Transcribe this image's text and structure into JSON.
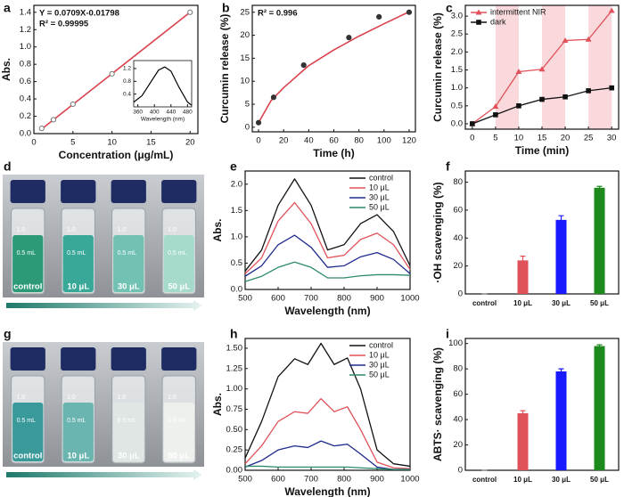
{
  "chart_data": [
    {
      "type": "scatter",
      "letter": "a",
      "x_label": "Concentration (μg/mL)",
      "y_label": "Abs.",
      "annotations": [
        "Y = 0.0709X-0.01798",
        "R² = 0.99995"
      ],
      "x": [
        1,
        2.5,
        5,
        10,
        20
      ],
      "values": [
        0.06,
        0.16,
        0.34,
        0.69,
        1.4
      ],
      "color": "#777777",
      "fit": {
        "x": [
          1,
          20
        ],
        "values": [
          0.053,
          1.4
        ],
        "color": "#d9434e"
      },
      "xlim": [
        0,
        21
      ],
      "ylim": [
        0,
        1.48
      ],
      "xticks": [
        0,
        5,
        10,
        15,
        20
      ],
      "yticks": [
        {
          "value": 0,
          "label": "0.0"
        },
        0.2,
        0.4,
        0.6,
        0.8,
        {
          "value": 1,
          "label": "1.0"
        },
        1.2,
        1.4
      ],
      "inset": {
        "x_label": "Wavelength (nm)",
        "x": [
          350,
          370,
          390,
          410,
          425,
          440,
          460,
          480,
          490
        ],
        "values": [
          0.15,
          0.35,
          0.75,
          1.15,
          1.25,
          1.12,
          0.6,
          0.15,
          0.05
        ],
        "color": "#000000",
        "xlim": [
          350,
          490
        ],
        "ylim": [
          0,
          1.45
        ],
        "xticks": [
          360,
          400,
          440,
          480
        ],
        "yticks": [
          0.4,
          0.8,
          1.2
        ]
      }
    },
    {
      "type": "scatter",
      "letter": "b",
      "x_label": "Time (h)",
      "y_label": "Curcumin release (%)",
      "annotations": [
        "R² = 0.996"
      ],
      "x": [
        0,
        12,
        36,
        72,
        96,
        120
      ],
      "values": [
        1,
        6.5,
        13.5,
        19.5,
        24,
        25
      ],
      "color": "#333333",
      "fit": {
        "x": [
          0,
          10,
          20,
          40,
          60,
          80,
          100,
          120
        ],
        "values": [
          1,
          5.8,
          8.6,
          13.4,
          16.8,
          19.8,
          22.5,
          25.1
        ],
        "color": "#d9434e"
      },
      "xlim": [
        -5,
        125
      ],
      "ylim": [
        -1,
        26.5
      ],
      "xticks": [
        0,
        20,
        40,
        60,
        80,
        100,
        120
      ],
      "yticks": [
        0,
        5,
        10,
        15,
        20,
        25
      ]
    },
    {
      "type": "line",
      "letter": "c",
      "x_label": "Time (min)",
      "y_label": "Curcumin release (%)",
      "legend": "upper left",
      "x": [
        0,
        5,
        10,
        15,
        20,
        25,
        30
      ],
      "shaded": [
        [
          5,
          10
        ],
        [
          15,
          20
        ],
        [
          25,
          30
        ]
      ],
      "shade_color": "#f9d9dc",
      "series": [
        {
          "name": "intermittent NIR",
          "color": "#e0525a",
          "marker": "triangle",
          "values": [
            0,
            0.48,
            1.45,
            1.52,
            2.32,
            2.35,
            3.15
          ]
        },
        {
          "name": "dark",
          "color": "#111111",
          "marker": "square",
          "values": [
            0,
            0.25,
            0.5,
            0.68,
            0.75,
            0.92,
            1.0
          ]
        }
      ],
      "xlim": [
        -1.5,
        31.5
      ],
      "ylim": [
        -0.15,
        3.3
      ],
      "xticks": [
        0,
        5,
        10,
        15,
        20,
        25,
        30
      ],
      "yticks": [
        {
          "value": 0,
          "label": "0.0"
        },
        0.5,
        {
          "value": 1,
          "label": "1.0"
        },
        1.5,
        {
          "value": 2,
          "label": "2.0"
        },
        2.5,
        {
          "value": 3,
          "label": "3.0"
        }
      ]
    },
    {
      "type": "photo",
      "letter": "d",
      "labels": [
        "control",
        "10 μL",
        "30 μL",
        "50 μL"
      ],
      "scale_labels": [
        "1.0",
        "0.5 mL"
      ],
      "liquid_colors": [
        "#2c9a78",
        "#3aa898",
        "#72c2b3",
        "#a6dacd"
      ]
    },
    {
      "type": "line",
      "letter": "e",
      "x_label": "Wavelength (nm)",
      "y_label": "Abs.",
      "legend": "upper right",
      "x": [
        500,
        550,
        600,
        650,
        700,
        750,
        800,
        850,
        900,
        950,
        1000
      ],
      "series": [
        {
          "name": "control",
          "color": "#111111",
          "values": [
            0.35,
            0.75,
            1.6,
            2.1,
            1.6,
            0.75,
            0.85,
            1.25,
            1.42,
            1.1,
            0.45
          ]
        },
        {
          "name": "10 μL",
          "color": "#e0525a",
          "values": [
            0.3,
            0.6,
            1.3,
            1.65,
            1.25,
            0.6,
            0.65,
            0.95,
            1.07,
            0.85,
            0.38
          ]
        },
        {
          "name": "30 μL",
          "color": "#1f2a8c",
          "values": [
            0.25,
            0.45,
            0.85,
            1.03,
            0.8,
            0.42,
            0.45,
            0.62,
            0.7,
            0.57,
            0.3
          ]
        },
        {
          "name": "50 μL",
          "color": "#2e8b6a",
          "values": [
            0.15,
            0.25,
            0.42,
            0.52,
            0.42,
            0.22,
            0.22,
            0.26,
            0.28,
            0.28,
            0.27
          ]
        }
      ],
      "xlim": [
        500,
        1000
      ],
      "ylim": [
        0,
        2.25
      ],
      "xticks": [
        500,
        600,
        700,
        800,
        900,
        1000
      ],
      "yticks": [
        {
          "value": 0,
          "label": "0.0"
        },
        0.5,
        {
          "value": 1,
          "label": "1.0"
        },
        1.5,
        {
          "value": 2,
          "label": "2.0"
        }
      ]
    },
    {
      "type": "bar",
      "letter": "f",
      "y_label": "·OH scavenging (%)",
      "categories": [
        "control",
        "10 μL",
        "30 μL",
        "50 μL"
      ],
      "values": [
        0,
        24,
        53,
        76
      ],
      "errors": [
        0,
        3,
        3,
        1
      ],
      "colors": [
        "#888888",
        "#e0525a",
        "#1a1aff",
        "#1e8a1e"
      ],
      "ylim": [
        0,
        88
      ],
      "yticks": [
        0,
        20,
        40,
        60,
        80
      ]
    },
    {
      "type": "photo",
      "letter": "g",
      "labels": [
        "control",
        "10 μL",
        "30 μL",
        "50 μL"
      ],
      "scale_labels": [
        "1.0",
        "0.5 mL"
      ],
      "liquid_colors": [
        "#3a9a9a",
        "#6ab5b0",
        "#dfe6e4",
        "#eef0ee"
      ]
    },
    {
      "type": "line",
      "letter": "h",
      "x_label": "Wavelength (nm)",
      "y_label": "Abs.",
      "legend": "upper right",
      "x": [
        500,
        550,
        600,
        650,
        690,
        730,
        770,
        810,
        850,
        900,
        950,
        1000
      ],
      "series": [
        {
          "name": "control",
          "color": "#111111",
          "values": [
            0.15,
            0.6,
            1.15,
            1.37,
            1.3,
            1.56,
            1.3,
            1.38,
            1.0,
            0.25,
            0.08,
            0.05
          ]
        },
        {
          "name": "10 μL",
          "color": "#e0525a",
          "values": [
            0.08,
            0.3,
            0.6,
            0.72,
            0.7,
            0.88,
            0.72,
            0.78,
            0.5,
            0.1,
            0.03,
            0.02
          ]
        },
        {
          "name": "30 μL",
          "color": "#1f2a8c",
          "values": [
            0.04,
            0.12,
            0.25,
            0.3,
            0.28,
            0.36,
            0.3,
            0.32,
            0.2,
            0.04,
            0.01,
            0.01
          ]
        },
        {
          "name": "50 μL",
          "color": "#2e8b6a",
          "values": [
            0.05,
            0.05,
            0.04,
            0.04,
            0.04,
            0.04,
            0.04,
            0.04,
            0.03,
            0.02,
            0.01,
            0.01
          ]
        }
      ],
      "xlim": [
        500,
        1000
      ],
      "ylim": [
        0,
        1.62
      ],
      "xticks": [
        500,
        600,
        700,
        800,
        900,
        1000
      ],
      "yticks": [
        {
          "value": 0,
          "label": "0.00"
        },
        0.25,
        {
          "value": 0.5,
          "label": "0.50"
        },
        0.75,
        {
          "value": 1,
          "label": "1.00"
        },
        1.25,
        {
          "value": 1.5,
          "label": "1.50"
        }
      ]
    },
    {
      "type": "bar",
      "letter": "i",
      "y_label": "ABTS· scavenging (%)",
      "categories": [
        "control",
        "10 μL",
        "30 μL",
        "50 μL"
      ],
      "values": [
        0,
        45,
        78,
        98
      ],
      "errors": [
        0,
        2,
        2,
        1
      ],
      "colors": [
        "#888888",
        "#e0525a",
        "#1a1aff",
        "#1e8a1e"
      ],
      "ylim": [
        0,
        104
      ],
      "yticks": [
        0,
        20,
        40,
        60,
        80,
        100
      ]
    }
  ]
}
